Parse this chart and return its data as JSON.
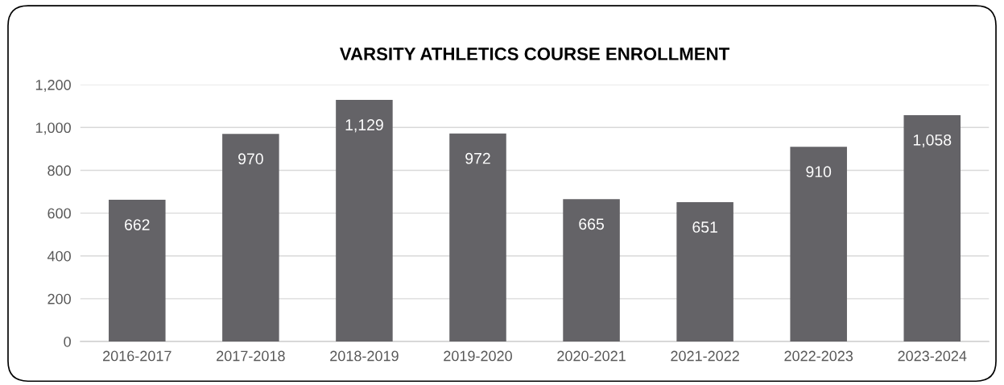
{
  "chart_data": {
    "type": "bar",
    "title": "VARSITY ATHLETICS COURSE ENROLLMENT",
    "categories": [
      "2016-2017",
      "2017-2018",
      "2018-2019",
      "2019-2020",
      "2020-2021",
      "2021-2022",
      "2022-2023",
      "2023-2024"
    ],
    "values": [
      662,
      970,
      1129,
      972,
      665,
      651,
      910,
      1058
    ],
    "value_labels": [
      "662",
      "970",
      "1,129",
      "972",
      "665",
      "651",
      "910",
      "1,058"
    ],
    "color": "#646367",
    "ylim": [
      0,
      1200
    ],
    "yticks": [
      0,
      200,
      400,
      600,
      800,
      {
        "value": 1000,
        "label": "1,000"
      },
      {
        "value": 1200,
        "label": "1,200"
      }
    ],
    "grid": "y"
  }
}
